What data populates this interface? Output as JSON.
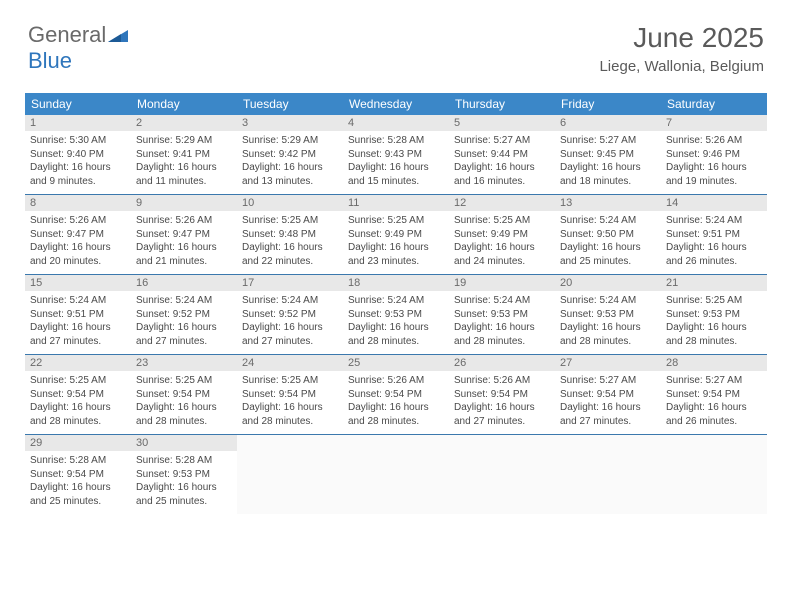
{
  "logo": {
    "word1": "General",
    "word2": "Blue"
  },
  "title": "June 2025",
  "location": "Liege, Wallonia, Belgium",
  "colors": {
    "header_blue": "#3b87c8",
    "row_border": "#3b78ad",
    "daynum_bg": "#e8e8e8",
    "text_gray": "#6a6a6a",
    "logo_blue": "#2f76bc"
  },
  "weekdays": [
    "Sunday",
    "Monday",
    "Tuesday",
    "Wednesday",
    "Thursday",
    "Friday",
    "Saturday"
  ],
  "weeks": [
    [
      {
        "n": "1",
        "sr": "Sunrise: 5:30 AM",
        "ss": "Sunset: 9:40 PM",
        "d1": "Daylight: 16 hours",
        "d2": "and 9 minutes."
      },
      {
        "n": "2",
        "sr": "Sunrise: 5:29 AM",
        "ss": "Sunset: 9:41 PM",
        "d1": "Daylight: 16 hours",
        "d2": "and 11 minutes."
      },
      {
        "n": "3",
        "sr": "Sunrise: 5:29 AM",
        "ss": "Sunset: 9:42 PM",
        "d1": "Daylight: 16 hours",
        "d2": "and 13 minutes."
      },
      {
        "n": "4",
        "sr": "Sunrise: 5:28 AM",
        "ss": "Sunset: 9:43 PM",
        "d1": "Daylight: 16 hours",
        "d2": "and 15 minutes."
      },
      {
        "n": "5",
        "sr": "Sunrise: 5:27 AM",
        "ss": "Sunset: 9:44 PM",
        "d1": "Daylight: 16 hours",
        "d2": "and 16 minutes."
      },
      {
        "n": "6",
        "sr": "Sunrise: 5:27 AM",
        "ss": "Sunset: 9:45 PM",
        "d1": "Daylight: 16 hours",
        "d2": "and 18 minutes."
      },
      {
        "n": "7",
        "sr": "Sunrise: 5:26 AM",
        "ss": "Sunset: 9:46 PM",
        "d1": "Daylight: 16 hours",
        "d2": "and 19 minutes."
      }
    ],
    [
      {
        "n": "8",
        "sr": "Sunrise: 5:26 AM",
        "ss": "Sunset: 9:47 PM",
        "d1": "Daylight: 16 hours",
        "d2": "and 20 minutes."
      },
      {
        "n": "9",
        "sr": "Sunrise: 5:26 AM",
        "ss": "Sunset: 9:47 PM",
        "d1": "Daylight: 16 hours",
        "d2": "and 21 minutes."
      },
      {
        "n": "10",
        "sr": "Sunrise: 5:25 AM",
        "ss": "Sunset: 9:48 PM",
        "d1": "Daylight: 16 hours",
        "d2": "and 22 minutes."
      },
      {
        "n": "11",
        "sr": "Sunrise: 5:25 AM",
        "ss": "Sunset: 9:49 PM",
        "d1": "Daylight: 16 hours",
        "d2": "and 23 minutes."
      },
      {
        "n": "12",
        "sr": "Sunrise: 5:25 AM",
        "ss": "Sunset: 9:49 PM",
        "d1": "Daylight: 16 hours",
        "d2": "and 24 minutes."
      },
      {
        "n": "13",
        "sr": "Sunrise: 5:24 AM",
        "ss": "Sunset: 9:50 PM",
        "d1": "Daylight: 16 hours",
        "d2": "and 25 minutes."
      },
      {
        "n": "14",
        "sr": "Sunrise: 5:24 AM",
        "ss": "Sunset: 9:51 PM",
        "d1": "Daylight: 16 hours",
        "d2": "and 26 minutes."
      }
    ],
    [
      {
        "n": "15",
        "sr": "Sunrise: 5:24 AM",
        "ss": "Sunset: 9:51 PM",
        "d1": "Daylight: 16 hours",
        "d2": "and 27 minutes."
      },
      {
        "n": "16",
        "sr": "Sunrise: 5:24 AM",
        "ss": "Sunset: 9:52 PM",
        "d1": "Daylight: 16 hours",
        "d2": "and 27 minutes."
      },
      {
        "n": "17",
        "sr": "Sunrise: 5:24 AM",
        "ss": "Sunset: 9:52 PM",
        "d1": "Daylight: 16 hours",
        "d2": "and 27 minutes."
      },
      {
        "n": "18",
        "sr": "Sunrise: 5:24 AM",
        "ss": "Sunset: 9:53 PM",
        "d1": "Daylight: 16 hours",
        "d2": "and 28 minutes."
      },
      {
        "n": "19",
        "sr": "Sunrise: 5:24 AM",
        "ss": "Sunset: 9:53 PM",
        "d1": "Daylight: 16 hours",
        "d2": "and 28 minutes."
      },
      {
        "n": "20",
        "sr": "Sunrise: 5:24 AM",
        "ss": "Sunset: 9:53 PM",
        "d1": "Daylight: 16 hours",
        "d2": "and 28 minutes."
      },
      {
        "n": "21",
        "sr": "Sunrise: 5:25 AM",
        "ss": "Sunset: 9:53 PM",
        "d1": "Daylight: 16 hours",
        "d2": "and 28 minutes."
      }
    ],
    [
      {
        "n": "22",
        "sr": "Sunrise: 5:25 AM",
        "ss": "Sunset: 9:54 PM",
        "d1": "Daylight: 16 hours",
        "d2": "and 28 minutes."
      },
      {
        "n": "23",
        "sr": "Sunrise: 5:25 AM",
        "ss": "Sunset: 9:54 PM",
        "d1": "Daylight: 16 hours",
        "d2": "and 28 minutes."
      },
      {
        "n": "24",
        "sr": "Sunrise: 5:25 AM",
        "ss": "Sunset: 9:54 PM",
        "d1": "Daylight: 16 hours",
        "d2": "and 28 minutes."
      },
      {
        "n": "25",
        "sr": "Sunrise: 5:26 AM",
        "ss": "Sunset: 9:54 PM",
        "d1": "Daylight: 16 hours",
        "d2": "and 28 minutes."
      },
      {
        "n": "26",
        "sr": "Sunrise: 5:26 AM",
        "ss": "Sunset: 9:54 PM",
        "d1": "Daylight: 16 hours",
        "d2": "and 27 minutes."
      },
      {
        "n": "27",
        "sr": "Sunrise: 5:27 AM",
        "ss": "Sunset: 9:54 PM",
        "d1": "Daylight: 16 hours",
        "d2": "and 27 minutes."
      },
      {
        "n": "28",
        "sr": "Sunrise: 5:27 AM",
        "ss": "Sunset: 9:54 PM",
        "d1": "Daylight: 16 hours",
        "d2": "and 26 minutes."
      }
    ],
    [
      {
        "n": "29",
        "sr": "Sunrise: 5:28 AM",
        "ss": "Sunset: 9:54 PM",
        "d1": "Daylight: 16 hours",
        "d2": "and 25 minutes."
      },
      {
        "n": "30",
        "sr": "Sunrise: 5:28 AM",
        "ss": "Sunset: 9:53 PM",
        "d1": "Daylight: 16 hours",
        "d2": "and 25 minutes."
      },
      null,
      null,
      null,
      null,
      null
    ]
  ]
}
